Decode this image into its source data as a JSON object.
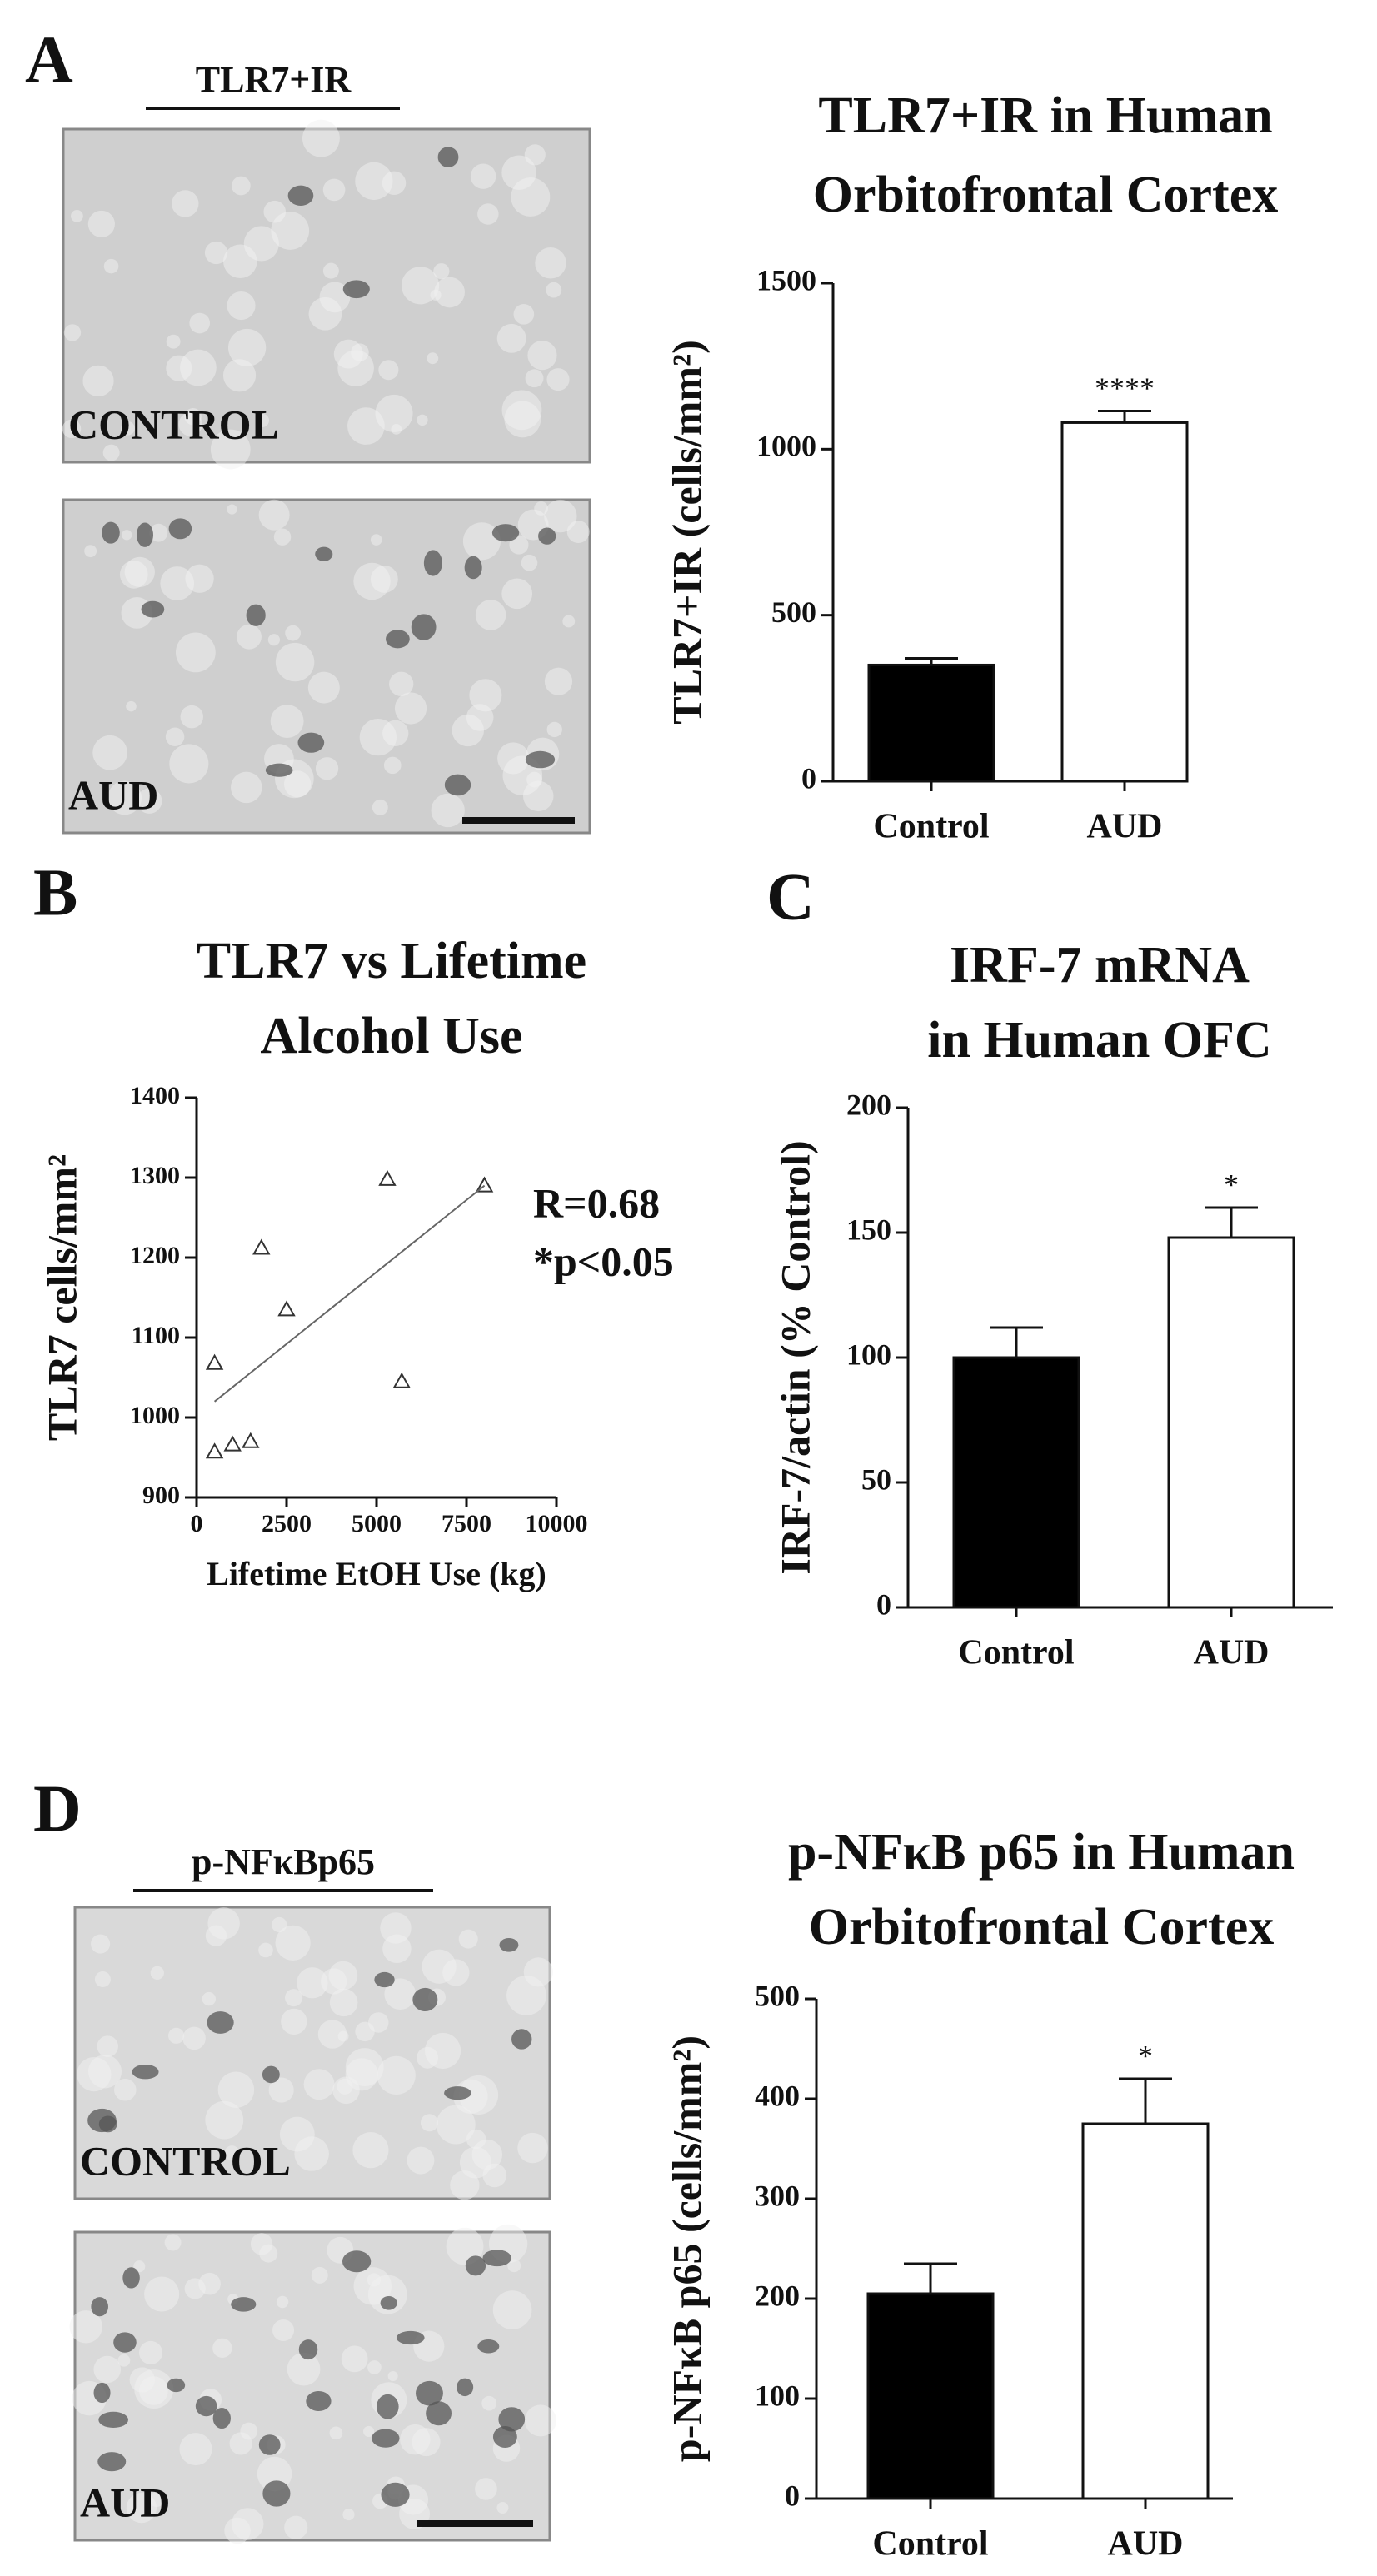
{
  "panel_letters": [
    "A",
    "B",
    "C",
    "D"
  ],
  "micrographs": [
    {
      "stain": "TLR7+IR",
      "images": [
        "CONTROL",
        "AUD"
      ]
    },
    {
      "stain": "p-NFκBp65",
      "images": [
        "CONTROL",
        "AUD"
      ]
    }
  ],
  "chart_data": [
    {
      "type": "bar",
      "title": [
        "TLR7+IR in Human",
        "Orbitofrontal Cortex"
      ],
      "ylabel": "TLR7+IR (cells/mm²)",
      "categories": [
        "Control",
        "AUD"
      ],
      "values": [
        350,
        1080
      ],
      "errors": [
        20,
        35
      ],
      "colors": [
        "#000000",
        "#ffffff"
      ],
      "significance": [
        null,
        "****"
      ],
      "ylim": [
        0,
        1500
      ],
      "yticks": [
        0,
        500,
        1000,
        1500
      ]
    },
    {
      "type": "scatter",
      "title": [
        "TLR7 vs  Lifetime",
        "Alcohol Use"
      ],
      "xlabel": "Lifetime EtOH Use (kg)",
      "ylabel": "TLR7 cells/mm²",
      "x": [
        500,
        500,
        1000,
        1500,
        1800,
        2500,
        5300,
        5700,
        8000
      ],
      "y": [
        1068,
        957,
        966,
        970,
        1212,
        1135,
        1298,
        1045,
        1290
      ],
      "fit": {
        "x": [
          500,
          8000
        ],
        "y": [
          1020,
          1290
        ]
      },
      "annotations": [
        "R=0.68",
        "*p<0.05"
      ],
      "xlim": [
        0,
        10000
      ],
      "xticks": [
        0,
        2500,
        5000,
        7500,
        10000
      ],
      "ylim": [
        900,
        1400
      ],
      "yticks": [
        900,
        1000,
        1100,
        1200,
        1300,
        1400
      ]
    },
    {
      "type": "bar",
      "title": [
        "IRF-7 mRNA",
        "in Human OFC"
      ],
      "ylabel": "IRF-7/actin (%  Control)",
      "categories": [
        "Control",
        "AUD"
      ],
      "values": [
        100,
        148
      ],
      "errors": [
        12,
        12
      ],
      "colors": [
        "#000000",
        "#ffffff"
      ],
      "significance": [
        null,
        "*"
      ],
      "ylim": [
        0,
        200
      ],
      "yticks": [
        0,
        50,
        100,
        150,
        200
      ]
    },
    {
      "type": "bar",
      "title": [
        "p-NFκB p65 in Human",
        "Orbitofrontal Cortex"
      ],
      "ylabel": "p-NFκB p65 (cells/mm²)",
      "categories": [
        "Control",
        "AUD"
      ],
      "values": [
        205,
        375
      ],
      "errors": [
        30,
        45
      ],
      "colors": [
        "#000000",
        "#ffffff"
      ],
      "significance": [
        null,
        "*"
      ],
      "ylim": [
        0,
        500
      ],
      "yticks": [
        0,
        100,
        200,
        300,
        400,
        500
      ]
    }
  ]
}
